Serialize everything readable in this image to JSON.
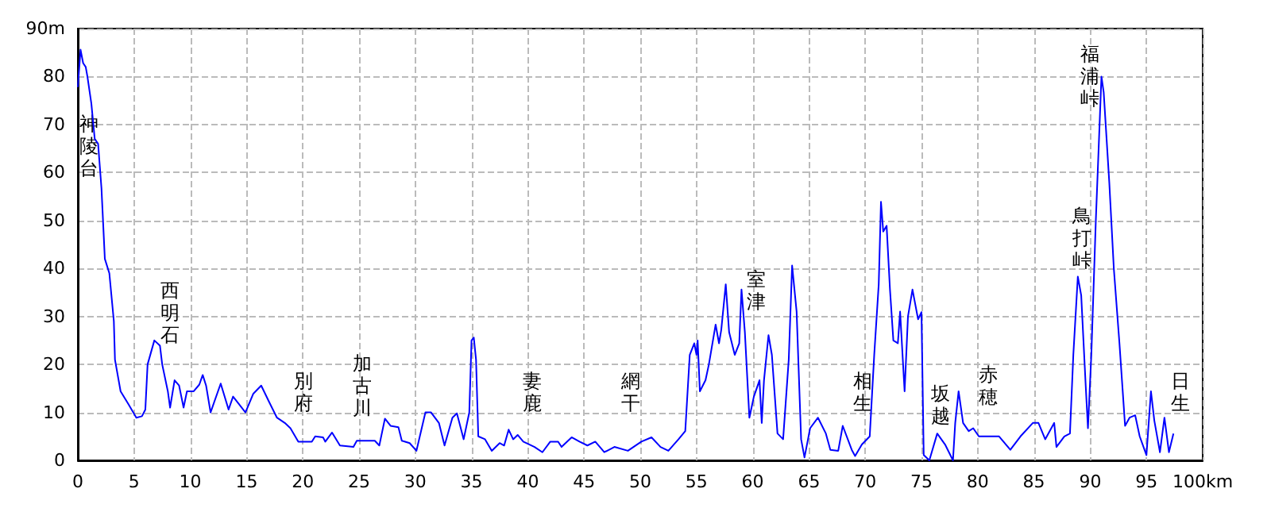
{
  "chart_data": {
    "type": "line",
    "color": "#0000ff",
    "marker": "none",
    "line_style": "solid",
    "grid": true,
    "xlim": [
      0,
      100
    ],
    "xticks": [
      0,
      5,
      10,
      15,
      20,
      25,
      30,
      35,
      40,
      45,
      50,
      55,
      60,
      65,
      70,
      75,
      80,
      85,
      90,
      95,
      {
        "value": 100,
        "label": "100km"
      }
    ],
    "ylim": [
      0,
      90
    ],
    "yticks": [
      0,
      10,
      20,
      30,
      40,
      50,
      60,
      70,
      80,
      {
        "value": 90,
        "label": "90m"
      }
    ],
    "x": [
      0,
      0.24,
      0.47,
      0.7,
      0.85,
      1.2,
      1.5,
      1.8,
      2.1,
      2.4,
      2.8,
      3.2,
      3.3,
      3.8,
      4.5,
      5.2,
      5.7,
      6.0,
      6.2,
      6.8,
      7.3,
      7.5,
      8.0,
      8.2,
      8.6,
      9.0,
      9.4,
      9.7,
      10.3,
      10.8,
      11.1,
      11.4,
      11.8,
      12.7,
      13.4,
      13.8,
      14.9,
      15.6,
      16.3,
      17,
      17.7,
      18.4,
      18.9,
      19.6,
      20.8,
      21.1,
      21.8,
      22,
      22.6,
      23.3,
      24.5,
      24.8,
      26.4,
      26.8,
      27.3,
      27.8,
      28.5,
      28.8,
      29.5,
      30.1,
      30.9,
      31.4,
      32.1,
      32.6,
      33.3,
      33.7,
      34.3,
      34.8,
      35.0,
      35.2,
      35.4,
      35.6,
      36.2,
      36.8,
      37.5,
      37.9,
      38.3,
      38.7,
      39.1,
      39.6,
      40.6,
      41.3,
      42,
      42.7,
      43,
      43.9,
      44.6,
      45.3,
      46,
      46.8,
      47.7,
      48.9,
      50.1,
      51,
      51.8,
      52.5,
      53.4,
      54,
      54.4,
      54.8,
      55,
      55.1,
      55.3,
      55.8,
      56.1,
      56.7,
      57,
      57.2,
      57.6,
      57.9,
      58.4,
      58.8,
      59,
      59.3,
      59.7,
      60.1,
      60.6,
      60.8,
      61,
      61.4,
      61.7,
      62.2,
      62.7,
      63.2,
      63.5,
      63.9,
      64.3,
      64.6,
      65.1,
      65.8,
      66.5,
      66.9,
      67.6,
      68,
      68.8,
      69.1,
      69.7,
      70.4,
      70.8,
      71.2,
      71.4,
      71.6,
      71.9,
      72.2,
      72.5,
      72.9,
      73.1,
      73.5,
      73.8,
      74.2,
      74.7,
      75,
      75.2,
      75.7,
      76.4,
      77.1,
      77.8,
      78,
      78.3,
      78.7,
      79.2,
      79.6,
      80.1,
      81.9,
      82.9,
      83.8,
      84.9,
      85.4,
      86,
      86.8,
      87,
      87.7,
      88.2,
      88.5,
      88.9,
      89.2,
      89.6,
      89.8,
      90.1,
      90.5,
      91,
      91.2,
      91.7,
      92.1,
      92.6,
      93.1,
      93.5,
      94,
      94.4,
      95,
      95.4,
      95.7,
      96.2,
      96.6,
      97,
      97.4
    ],
    "values": [
      77.8,
      85.6,
      82.8,
      82,
      80,
      74.4,
      67,
      66,
      56.7,
      42,
      39,
      29,
      21,
      14.4,
      11.7,
      8.9,
      9.2,
      10.6,
      20,
      25,
      23.9,
      20,
      14.4,
      11,
      16.7,
      15.6,
      11,
      14.4,
      14.4,
      15.8,
      17.8,
      15.6,
      10,
      16,
      10.6,
      13.3,
      10,
      13.9,
      15.6,
      12.2,
      8.9,
      7.8,
      6.7,
      3.9,
      3.9,
      5,
      4.8,
      3.9,
      5.8,
      3.1,
      2.8,
      4.1,
      4.1,
      3.1,
      8.7,
      7.2,
      6.9,
      4.1,
      3.6,
      2,
      10,
      10,
      7.8,
      3.1,
      8.9,
      9.8,
      4.4,
      10,
      25,
      25.6,
      21,
      5,
      4.4,
      2,
      3.6,
      3.1,
      6.4,
      4.4,
      5.3,
      3.9,
      2.8,
      1.7,
      3.9,
      3.9,
      2.8,
      4.8,
      3.9,
      3.1,
      3.9,
      1.7,
      2.8,
      2,
      3.9,
      4.8,
      2.8,
      2,
      4.4,
      6.1,
      22,
      24.4,
      22,
      25,
      14.4,
      16.7,
      20,
      28.3,
      24.4,
      27.2,
      36.7,
      26.7,
      22,
      24.4,
      35.6,
      26.7,
      8.9,
      13.3,
      16.7,
      7.8,
      16.7,
      26.1,
      22,
      5.6,
      4.4,
      21,
      40.6,
      31,
      4.4,
      0.6,
      6.7,
      8.9,
      5.6,
      2.2,
      2,
      7.2,
      2.2,
      0.9,
      3.3,
      5,
      22,
      36.7,
      53.9,
      47.7,
      48.9,
      35.6,
      25,
      24.4,
      31,
      14.4,
      30,
      35.6,
      29.4,
      30.9,
      1.1,
      0,
      5.6,
      3.3,
      0,
      7.8,
      14.4,
      7.8,
      6.1,
      6.7,
      5,
      5,
      2.2,
      5,
      7.8,
      7.8,
      4.4,
      7.8,
      2.8,
      5,
      5.6,
      22,
      38.3,
      34.4,
      15.6,
      6.7,
      22,
      50,
      80,
      76.7,
      57.8,
      40,
      24.4,
      7.2,
      8.9,
      9.4,
      5,
      1.1,
      14.4,
      8.3,
      1.7,
      8.9,
      1.7,
      5.6
    ],
    "annotations": [
      "神陵台",
      "西明石",
      "別府",
      "加古川",
      "妻鹿",
      "網干",
      "室津",
      "相生",
      "坂越",
      "赤穂",
      "鳥打峠",
      "福浦峠",
      "日生"
    ]
  }
}
